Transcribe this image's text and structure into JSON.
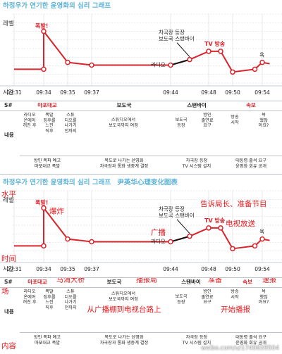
{
  "panels": [
    {
      "title": "하정우가 연기한 윤영화의 심리 그래프",
      "subtitle": "",
      "y_axis_label": "레벨",
      "x_axis_label": "시간",
      "chart_data": {
        "type": "line",
        "x": [
          "09:31",
          "09:34",
          "09:35",
          "09:37",
          "09:44",
          "09:48",
          "09:50",
          "09:54"
        ],
        "ylim": [
          0,
          10
        ],
        "series": [
          {
            "points": [
              {
                "x": "09:31",
                "y": 2.0
              },
              {
                "x": "09:34",
                "y": 2.0
              },
              {
                "x": "09:34",
                "y": 7.5
              },
              {
                "x": "09:35",
                "y": 3.0
              },
              {
                "x": "09:37",
                "y": 2.6
              },
              {
                "x": "09:44",
                "y": 2.6
              },
              {
                "x": "09:46",
                "y": 3.4
              },
              {
                "x": "09:48",
                "y": 4.6
              },
              {
                "x": "09:49",
                "y": 4.6
              },
              {
                "x": "09:50",
                "y": 1.6
              },
              {
                "x": "09:53",
                "y": 2.0
              },
              {
                "x": "09:54",
                "y": 3.0
              },
              {
                "x": "09:55",
                "y": 2.8
              }
            ]
          }
        ]
      },
      "annotations": {
        "bomb": "폭발!",
        "radio": "라디오",
        "bureau": "차국장 등장\n보도국 스탠바이",
        "tv": "TV 방송",
        "curse": "욕"
      },
      "table": {
        "row_scene": "S#",
        "row_content": "내용",
        "scenes": [
          "마포대교",
          "보도국",
          "스탠바이",
          "속보"
        ],
        "cells": [
          "라디오\n온에어\n꺼진 후",
          "폭발\n징후를\n느낀\n직후",
          "스튜\n디오를\n나가기\n전까지",
          "스튜디오에서\n보도국까지 여정",
          "보도국\n등장",
          "방인\n출연료\n요구",
          "방송\n시작",
          "욕\n했잖\n아요?"
        ],
        "summary": [
          "방인 폭파 예고\n마포대교 폭발",
          "복도로 나가는 윤영화\n차국장과 통화 생중계 결정",
          "차국장 등장\nTV 시스템 설치",
          "대통령 출석 요구\n윤영화 회유 공개"
        ]
      }
    },
    {
      "title": "하정우가 연기한 윤영화의 심리 그래프",
      "subtitle": "尹英华心理变化图表",
      "y_axis_label": "레벨",
      "x_axis_label": "시간",
      "chart_data": {
        "type": "line",
        "x": [
          "09:31",
          "09:34",
          "09:35",
          "09:37",
          "09:44",
          "09:48",
          "09:50",
          "09:54"
        ],
        "ylim": [
          0,
          10
        ],
        "series": [
          {
            "points": [
              {
                "x": "09:31",
                "y": 2.0
              },
              {
                "x": "09:34",
                "y": 2.0
              },
              {
                "x": "09:34",
                "y": 7.5
              },
              {
                "x": "09:35",
                "y": 3.0
              },
              {
                "x": "09:37",
                "y": 2.6
              },
              {
                "x": "09:44",
                "y": 2.6
              },
              {
                "x": "09:46",
                "y": 3.4
              },
              {
                "x": "09:48",
                "y": 4.6
              },
              {
                "x": "09:49",
                "y": 4.6
              },
              {
                "x": "09:50",
                "y": 1.6
              },
              {
                "x": "09:53",
                "y": 2.0
              },
              {
                "x": "09:54",
                "y": 3.0
              },
              {
                "x": "09:55",
                "y": 2.8
              }
            ]
          }
        ]
      },
      "annotations": {
        "bomb": "폭발!",
        "radio": "라디오",
        "radio_cn": "广播",
        "bureau": "차국장 등장\n보도국 스탠바이",
        "tv": "TV 방송",
        "curse": "욕",
        "level_cn": "水平",
        "bomb_cn": "爆炸",
        "time_cn": "时间",
        "tell_cn": "告诉局长、准备节目",
        "tv_cn": "电视放送",
        "s_cn": "场",
        "content_cn": "内容"
      },
      "table": {
        "row_scene": "S#",
        "row_content": "내용",
        "scenes": [
          "마포대교",
          "보도국",
          "스탠바이",
          "속보"
        ],
        "scenes_cn": [
          "马浦大桥",
          "播报局",
          "准备",
          "速报"
        ],
        "cells": [
          "라디오\n온에어\n꺼진 후",
          "폭발\n징후를\n느낀\n직후",
          "스튜\n디오를\n나가기\n전까지",
          "스튜디오에서\n보도국까지 여정",
          "보도국\n등장",
          "방인\n출연료\n요구",
          "방송\n시작",
          "욕\n했잖\n아요?"
        ],
        "cells_cn": [
          "从广播棚到电视台路上",
          "开始播报"
        ],
        "summary": [
          "방인 폭파 예고\n마포대교 폭발",
          "복도로 나가는 윤영화\n차국장과 통화 생중계 결정",
          "차국장 등장\nTV 시스템 설치",
          "대통령 출석 요구\n윤영화 회유 공개"
        ]
      }
    }
  ],
  "watermark": "weibo.com/u/1740659504",
  "colors": {
    "line": "#d8242b",
    "marker_fill": "#ffffff",
    "title": "#5fb3d8",
    "grid": "#cfd5da",
    "cn_annotation": "#e8161a"
  }
}
